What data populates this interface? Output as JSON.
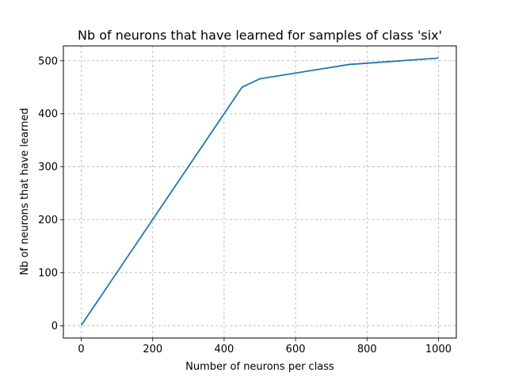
{
  "chart_data": {
    "type": "line",
    "title": "Nb of neurons that have learned for samples of class 'six'",
    "xlabel": "Number of neurons per class",
    "ylabel": "Nb of neurons that have learned",
    "xlim": [
      -50,
      1050
    ],
    "ylim": [
      -23,
      528
    ],
    "xticks": [
      0,
      200,
      400,
      600,
      800,
      1000
    ],
    "yticks": [
      0,
      100,
      200,
      300,
      400,
      500
    ],
    "grid": true,
    "legend": null,
    "series": [
      {
        "name": "six",
        "color": "#1f77b4",
        "x": [
          0,
          450,
          500,
          750,
          1000
        ],
        "y": [
          1,
          450,
          466,
          493,
          505
        ]
      }
    ]
  }
}
